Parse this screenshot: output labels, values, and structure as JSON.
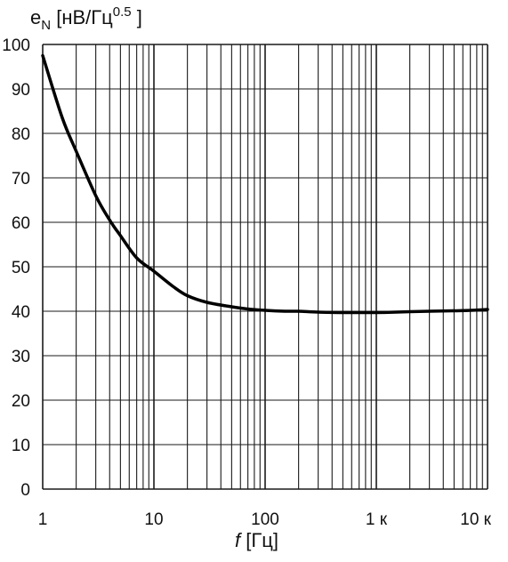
{
  "chart_data": {
    "type": "line",
    "title": "",
    "ylabel": {
      "prefix": "e",
      "sub": "N",
      "unit_main": " [нВ/Гц",
      "unit_sup": "0.5",
      "unit_end": " ]"
    },
    "xlabel": {
      "var": "f",
      "unit": " [Гц]"
    },
    "xscale": "log",
    "xlim": [
      1,
      10000
    ],
    "ylim": [
      0,
      100
    ],
    "grid": true,
    "x_tick_labels": [
      {
        "value": 1,
        "label": "1"
      },
      {
        "value": 10,
        "label": "10"
      },
      {
        "value": 100,
        "label": "100"
      },
      {
        "value": 1000,
        "label": "1 к"
      },
      {
        "value": 10000,
        "label": "10 к"
      }
    ],
    "y_tick_labels": [
      "0",
      "10",
      "20",
      "30",
      "40",
      "50",
      "60",
      "70",
      "80",
      "90",
      "100"
    ],
    "series": [
      {
        "x": [
          1,
          1.5,
          2,
          3,
          4,
          5,
          7,
          10,
          15,
          20,
          30,
          50,
          70,
          100,
          150,
          200,
          300,
          500,
          700,
          1000,
          1500,
          2000,
          3000,
          5000,
          7000,
          10000
        ],
        "y": [
          97.5,
          83.5,
          76,
          66,
          60.5,
          57,
          52,
          49,
          45.5,
          43.5,
          42,
          41,
          40.5,
          40.2,
          40.0,
          40.0,
          39.8,
          39.7,
          39.7,
          39.7,
          39.8,
          39.9,
          40.0,
          40.1,
          40.2,
          40.4
        ]
      }
    ]
  }
}
